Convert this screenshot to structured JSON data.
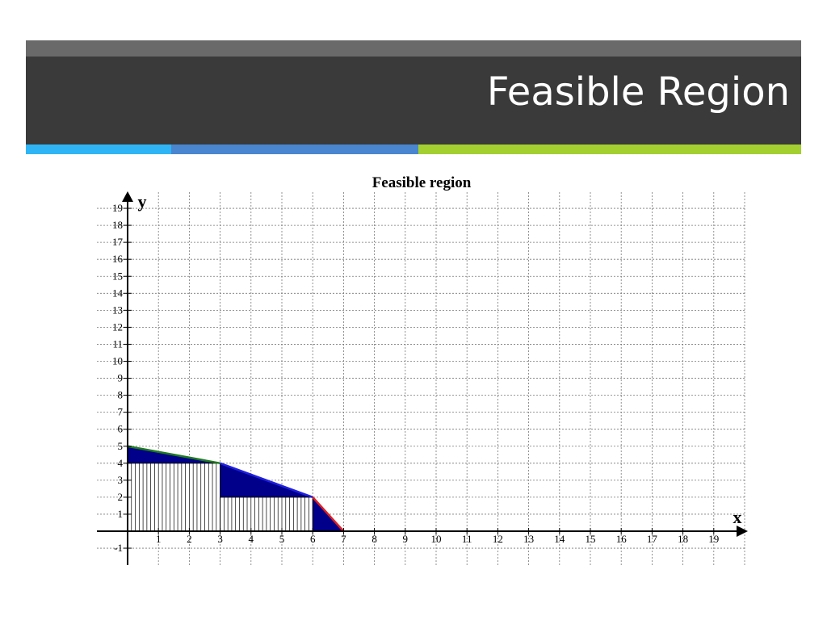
{
  "slide": {
    "title": "Feasible Region",
    "colors": {
      "header": "#3a3a3a",
      "header_top": "#6a6a6a",
      "accent_blue_light": "#2fb5f5",
      "accent_blue": "#4a86d0",
      "accent_green": "#a4cf30"
    }
  },
  "chart_data": {
    "type": "area",
    "title": "Feasible region",
    "xlabel": "x",
    "ylabel": "y",
    "xlim": [
      -1,
      20
    ],
    "ylim": [
      -2,
      20
    ],
    "x_ticks": [
      1,
      2,
      3,
      4,
      5,
      6,
      7,
      8,
      9,
      10,
      11,
      12,
      13,
      14,
      15,
      16,
      17,
      18,
      19
    ],
    "y_ticks": [
      -1,
      1,
      2,
      3,
      4,
      5,
      6,
      7,
      8,
      9,
      10,
      11,
      12,
      13,
      14,
      15,
      16,
      17,
      18,
      19
    ],
    "grid": true,
    "region": {
      "boundary": [
        [
          0,
          5
        ],
        [
          3,
          4
        ],
        [
          6,
          2
        ],
        [
          7,
          0
        ]
      ],
      "fill_color": "#00008b",
      "edges": [
        {
          "from": [
            0,
            5
          ],
          "to": [
            3,
            4
          ],
          "color": "#1f7a1f"
        },
        {
          "from": [
            3,
            4
          ],
          "to": [
            6,
            2
          ],
          "color": "#2020e0"
        },
        {
          "from": [
            6,
            2
          ],
          "to": [
            7,
            0
          ],
          "color": "#e02020"
        }
      ],
      "hatched_steps": [
        {
          "x": [
            0,
            3
          ],
          "height": 4
        },
        {
          "x": [
            3,
            6
          ],
          "height": 2
        }
      ]
    }
  }
}
